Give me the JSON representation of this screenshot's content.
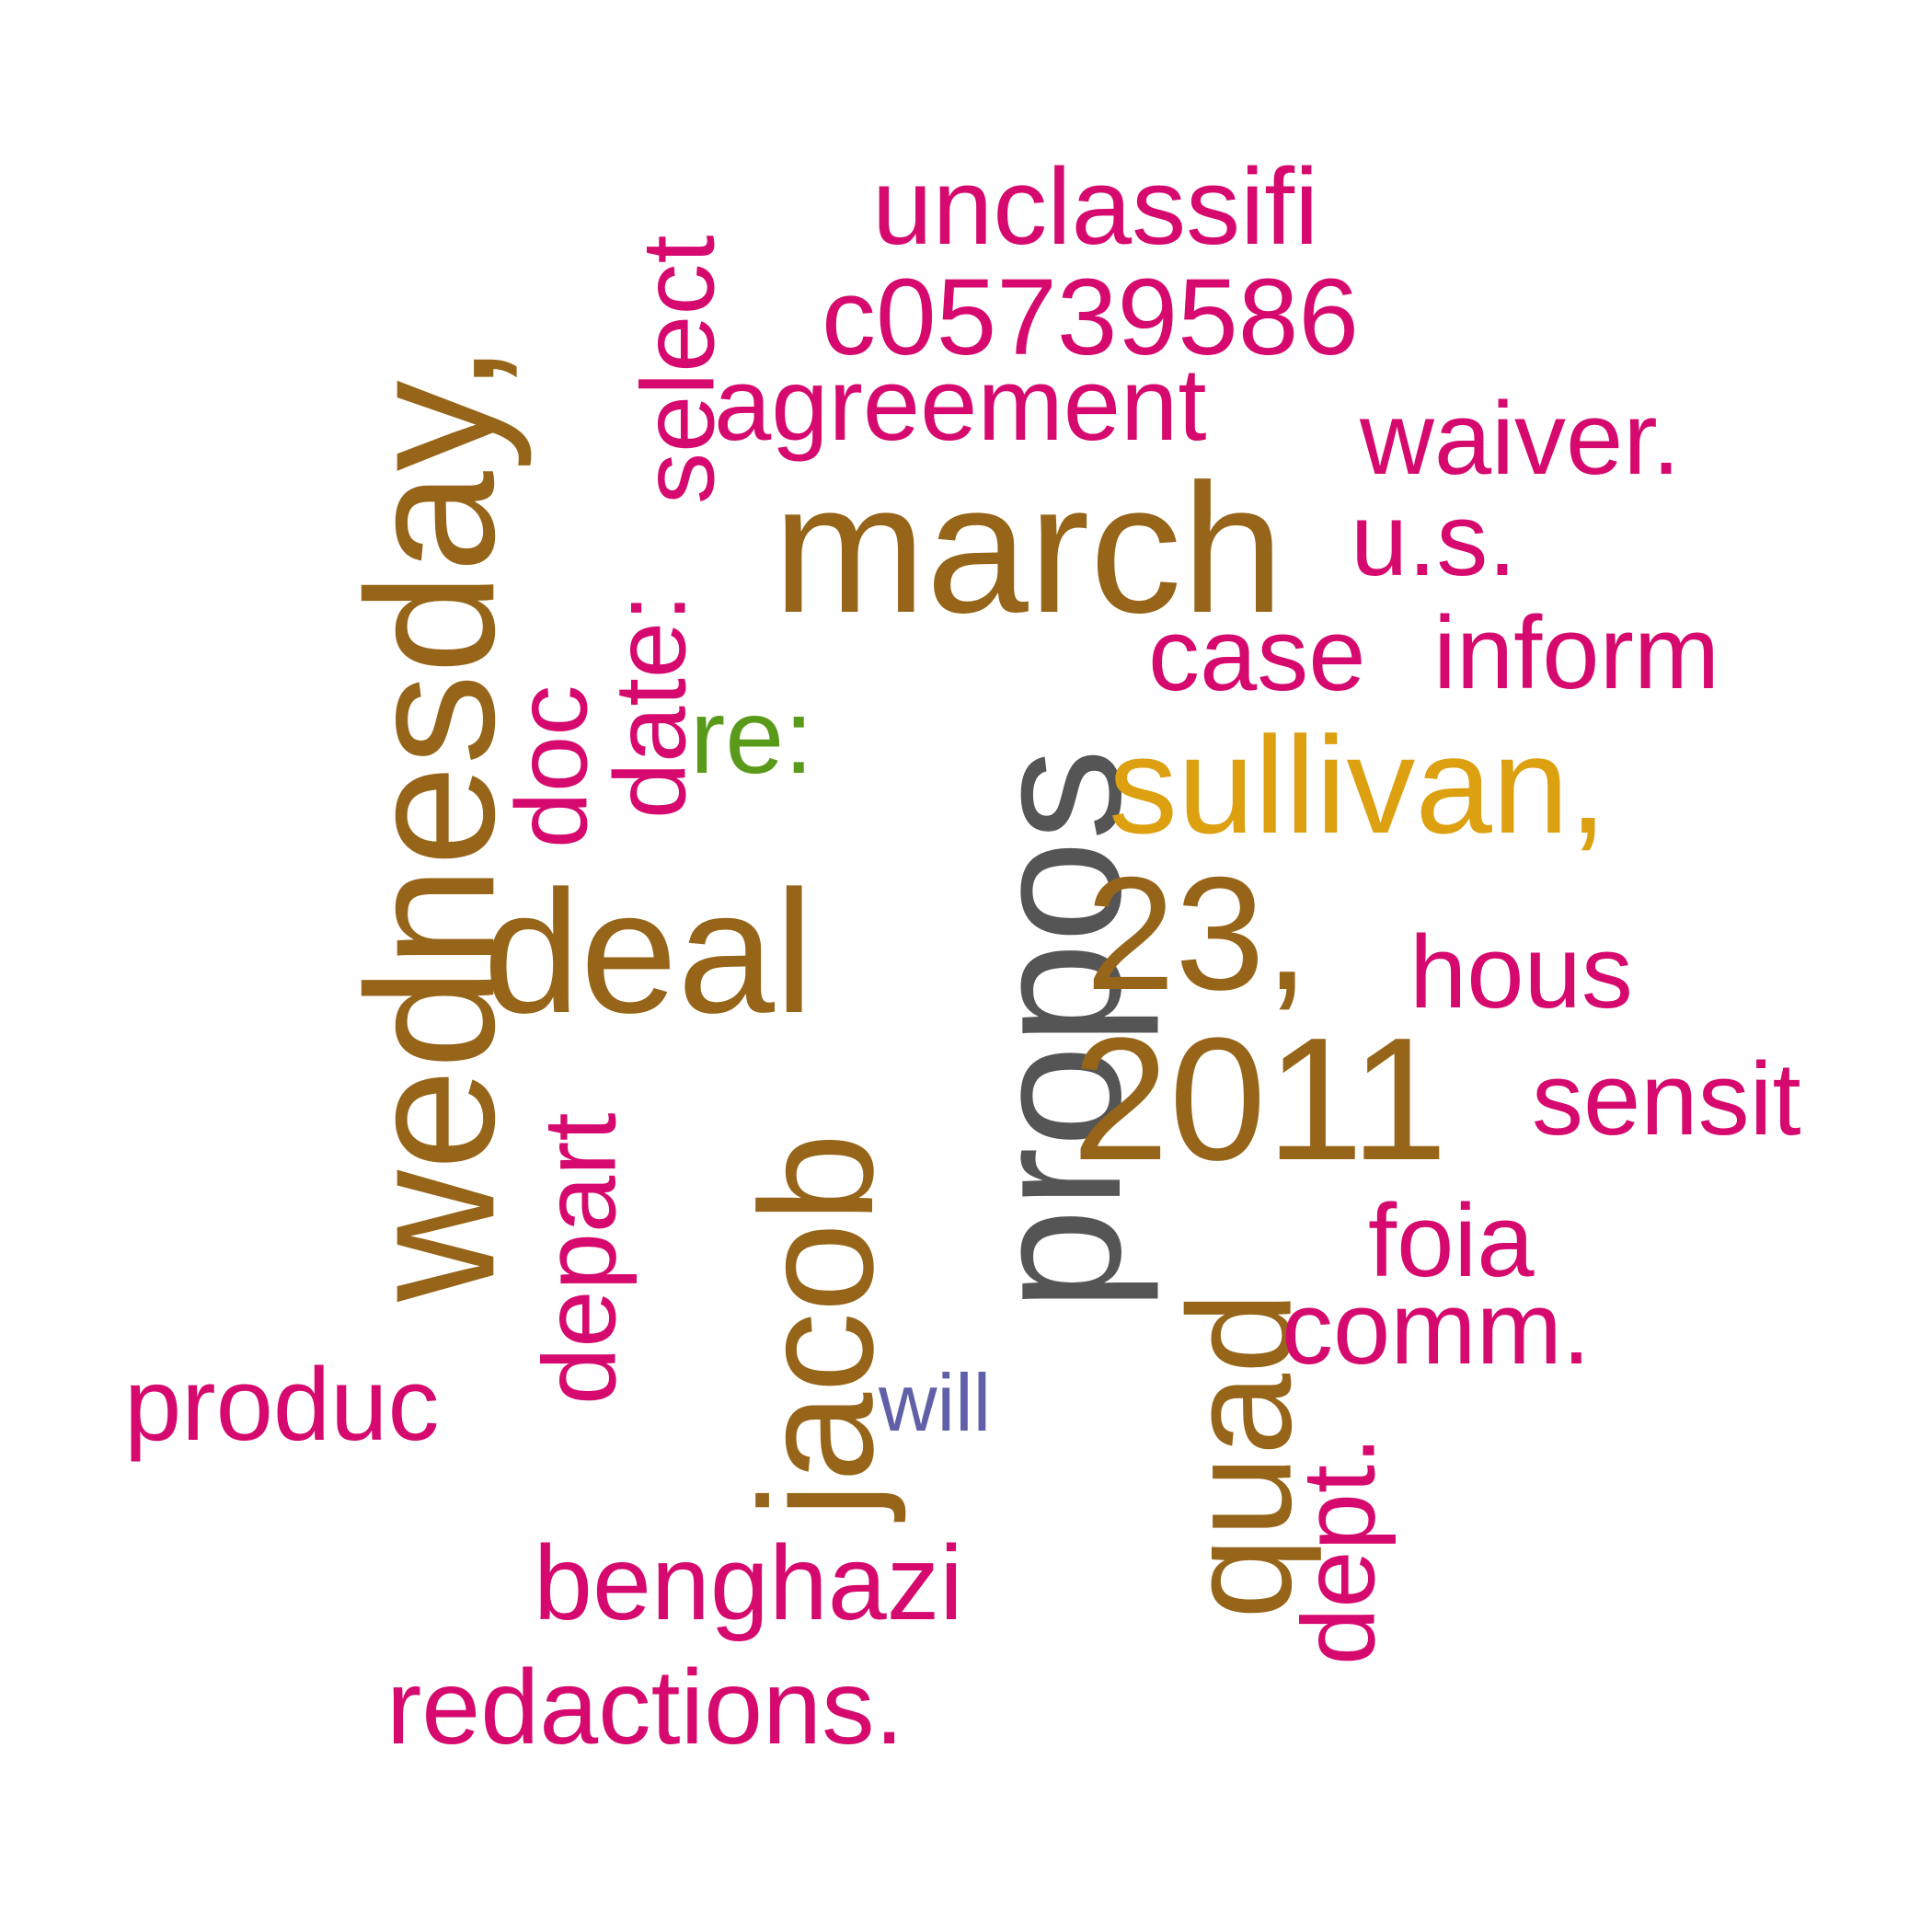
{
  "colors": {
    "brown": "#966519",
    "magenta": "#D6096E",
    "gray": "#555555",
    "orange": "#DDA010",
    "green": "#5A9A1A",
    "purple": "#6060A8"
  },
  "words": [
    {
      "id": "wednesday",
      "text": "wednesday,",
      "color": "brown"
    },
    {
      "id": "march",
      "text": "march",
      "color": "brown"
    },
    {
      "id": "propos",
      "text": "propos",
      "color": "gray"
    },
    {
      "id": "jacob",
      "text": "jacob",
      "color": "brown"
    },
    {
      "id": "deal",
      "text": "deal",
      "color": "brown"
    },
    {
      "id": "23",
      "text": "23,",
      "color": "brown"
    },
    {
      "id": "2011",
      "text": "2011",
      "color": "brown"
    },
    {
      "id": "quad",
      "text": "quad",
      "color": "brown"
    },
    {
      "id": "sullivan",
      "text": "sullivan,",
      "color": "orange"
    },
    {
      "id": "re",
      "text": "re:",
      "color": "green"
    },
    {
      "id": "will",
      "text": "will",
      "color": "purple"
    },
    {
      "id": "unclassifi",
      "text": "unclassifi",
      "color": "magenta"
    },
    {
      "id": "c05739586",
      "text": "c05739586",
      "color": "magenta"
    },
    {
      "id": "agreement",
      "text": "agreement",
      "color": "magenta"
    },
    {
      "id": "waiver",
      "text": "waiver.",
      "color": "magenta"
    },
    {
      "id": "us",
      "text": "u.s.",
      "color": "magenta"
    },
    {
      "id": "case",
      "text": "case",
      "color": "magenta"
    },
    {
      "id": "inform",
      "text": "inform",
      "color": "magenta"
    },
    {
      "id": "hous",
      "text": "hous",
      "color": "magenta"
    },
    {
      "id": "sensit",
      "text": "sensit",
      "color": "magenta"
    },
    {
      "id": "foia",
      "text": "foia",
      "color": "magenta"
    },
    {
      "id": "comm",
      "text": "comm.",
      "color": "magenta"
    },
    {
      "id": "produc",
      "text": "produc",
      "color": "magenta"
    },
    {
      "id": "benghazi",
      "text": "benghazi",
      "color": "magenta"
    },
    {
      "id": "redactions",
      "text": "redactions.",
      "color": "magenta"
    },
    {
      "id": "select",
      "text": "select",
      "color": "magenta"
    },
    {
      "id": "date",
      "text": "date:",
      "color": "magenta"
    },
    {
      "id": "doc",
      "text": "doc",
      "color": "magenta"
    },
    {
      "id": "depart",
      "text": "depart",
      "color": "magenta"
    },
    {
      "id": "dept",
      "text": "dept.",
      "color": "magenta"
    }
  ]
}
